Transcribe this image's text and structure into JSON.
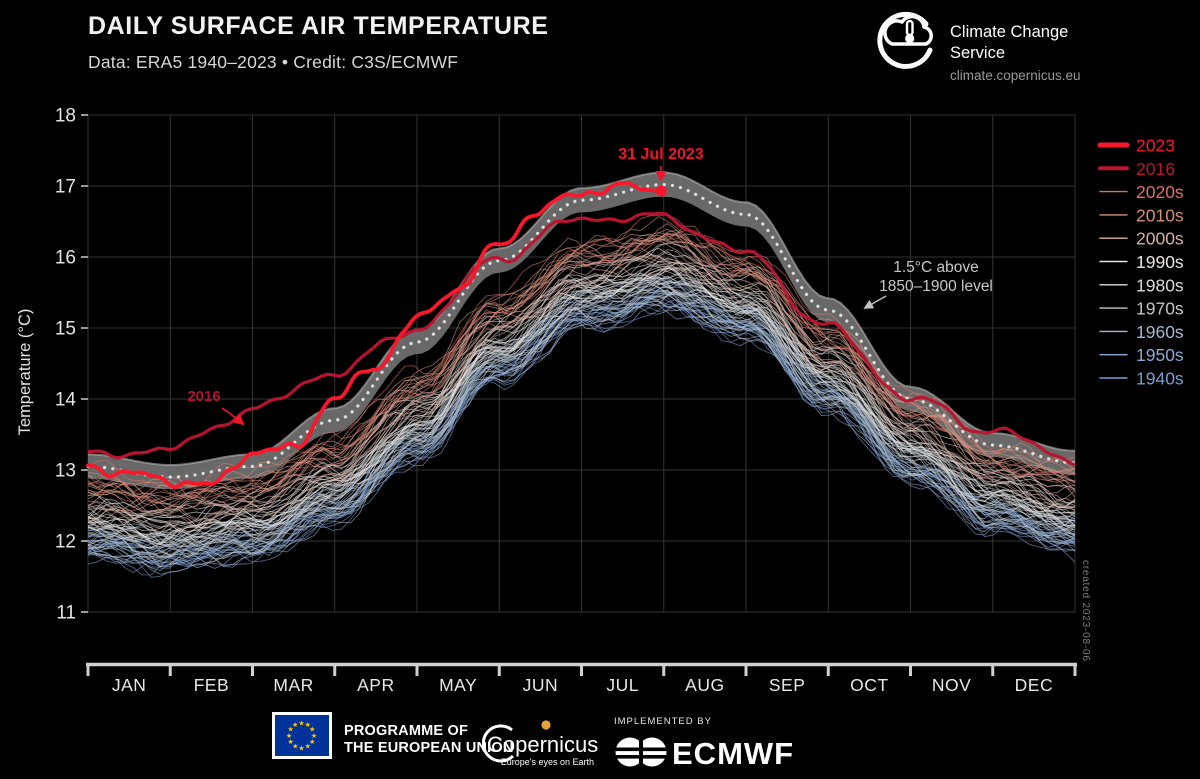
{
  "header": {
    "title": "DAILY SURFACE AIR TEMPERATURE",
    "subtitle": "Data: ERA5 1940–2023 • Credit: C3S/ECMWF"
  },
  "branding": {
    "logo_title": "Climate Change Service",
    "url": "climate.copernicus.eu"
  },
  "watermark": "created 2023-08-06",
  "footer": {
    "programme_line1": "PROGRAMME OF",
    "programme_line2": "THE EUROPEAN UNION",
    "copernicus_name": "Copernicus",
    "copernicus_tagline": "Europe's eyes on Earth",
    "implemented_by": "IMPLEMENTED BY",
    "ecmwf_label": "ECMWF"
  },
  "chart_data": {
    "type": "line",
    "title": "Daily surface air temperature, ERA5 1940–2023",
    "xlabel": "",
    "ylabel": "Temperature (°C)",
    "ylim": [
      11,
      18
    ],
    "yticks": [
      18,
      17,
      16,
      15,
      14,
      13,
      12,
      11
    ],
    "months": [
      "JAN",
      "FEB",
      "MAR",
      "APR",
      "MAY",
      "JUN",
      "JUL",
      "AUG",
      "SEP",
      "OCT",
      "NOV",
      "DEC"
    ],
    "grid": true,
    "legend_position": "right-outside",
    "annotations": {
      "peak_label": "31 Jul 2023",
      "year2016_label": "2016",
      "band_label_line1": "1.5°C above",
      "band_label_line2": "1850–1900 level"
    },
    "legend": [
      {
        "label": "2023",
        "color": "#f8172b",
        "lw": 5
      },
      {
        "label": "2016",
        "color": "#bb1530",
        "lw": 4
      },
      {
        "label": "2020s",
        "color": "#dd7263",
        "lw": 1.4
      },
      {
        "label": "2010s",
        "color": "#d78f7a",
        "lw": 1.4
      },
      {
        "label": "2000s",
        "color": "#d9b2a7",
        "lw": 1.4
      },
      {
        "label": "1990s",
        "color": "#ece5e1",
        "lw": 1.4
      },
      {
        "label": "1980s",
        "color": "#dbdbdb",
        "lw": 1.4
      },
      {
        "label": "1970s",
        "color": "#c2c6ca",
        "lw": 1.4
      },
      {
        "label": "1960s",
        "color": "#a3b8cd",
        "lw": 1.4
      },
      {
        "label": "1950s",
        "color": "#8cabd6",
        "lw": 1.4
      },
      {
        "label": "1940s",
        "color": "#7b9cd1",
        "lw": 1.4
      }
    ],
    "band": {
      "label": "1.5°C above 1850–1900 level",
      "center_monthly": [
        13.05,
        12.9,
        13.05,
        13.7,
        14.8,
        15.95,
        16.8,
        17.02,
        16.6,
        15.25,
        14.0,
        13.35,
        13.1
      ],
      "halfwidth": 0.17,
      "fill_color": "#6e6e6e",
      "edge_color": "#b4b4b4",
      "dotted_color": "#e6e6e6"
    },
    "series_2023": {
      "name": "2023",
      "color": "#f8172b",
      "ends_at": "31 Jul",
      "end_value": 16.93,
      "x_span": [
        0,
        0.5808
      ],
      "anchors": [
        13.05,
        12.95,
        12.85,
        12.78,
        13.25,
        13.3,
        14.0,
        14.45,
        15.1,
        15.55,
        16.15,
        16.65,
        16.9,
        17.0,
        16.93
      ]
    },
    "series_2016": {
      "name": "2016",
      "color": "#bb1530",
      "anchors_monthly": [
        13.2,
        13.3,
        13.85,
        14.38,
        15.0,
        16.0,
        16.55,
        16.55,
        16.05,
        15.0,
        14.0,
        13.55,
        13.15
      ]
    },
    "decades": [
      {
        "name": "1940s",
        "color": "#7b9cd1",
        "years": 10,
        "anchors": [
          11.95,
          11.8,
          11.95,
          12.45,
          13.35,
          14.45,
          15.2,
          15.45,
          15.05,
          14.05,
          13.05,
          12.35,
          12.05
        ]
      },
      {
        "name": "1950s",
        "color": "#8cabd6",
        "years": 10,
        "anchors": [
          12.0,
          11.85,
          12.0,
          12.5,
          13.4,
          14.5,
          15.25,
          15.5,
          15.1,
          14.1,
          13.1,
          12.4,
          12.1
        ]
      },
      {
        "name": "1960s",
        "color": "#a3b8cd",
        "years": 10,
        "anchors": [
          12.02,
          11.87,
          12.02,
          12.52,
          13.42,
          14.52,
          15.27,
          15.52,
          15.12,
          14.12,
          13.12,
          12.42,
          12.12
        ]
      },
      {
        "name": "1970s",
        "color": "#c2c6ca",
        "years": 10,
        "anchors": [
          12.1,
          11.95,
          12.1,
          12.6,
          13.5,
          14.6,
          15.35,
          15.6,
          15.2,
          14.2,
          13.2,
          12.5,
          12.2
        ]
      },
      {
        "name": "1980s",
        "color": "#dbdbdb",
        "years": 10,
        "anchors": [
          12.23,
          12.08,
          12.23,
          12.73,
          13.63,
          14.73,
          15.48,
          15.73,
          15.33,
          14.33,
          13.33,
          12.63,
          12.33
        ]
      },
      {
        "name": "1990s",
        "color": "#ece5e1",
        "years": 10,
        "anchors": [
          12.4,
          12.25,
          12.4,
          12.9,
          13.8,
          14.9,
          15.65,
          15.9,
          15.5,
          14.5,
          13.5,
          12.8,
          12.5
        ]
      },
      {
        "name": "2000s",
        "color": "#d9b2a7",
        "years": 10,
        "anchors": [
          12.57,
          12.42,
          12.57,
          13.07,
          13.97,
          15.07,
          15.82,
          16.07,
          15.67,
          14.67,
          13.67,
          12.97,
          12.67
        ]
      },
      {
        "name": "2010s",
        "color": "#d78f7a",
        "years": 10,
        "anchors": [
          12.75,
          12.6,
          12.75,
          13.25,
          14.15,
          15.25,
          16.0,
          16.25,
          15.85,
          14.85,
          13.85,
          13.15,
          12.85
        ]
      },
      {
        "name": "2020s",
        "color": "#dd7263",
        "years": 3,
        "anchors": [
          12.9,
          12.75,
          12.9,
          13.4,
          14.3,
          15.4,
          16.15,
          16.4,
          16.0,
          15.0,
          14.0,
          13.3,
          13.0
        ]
      }
    ]
  }
}
